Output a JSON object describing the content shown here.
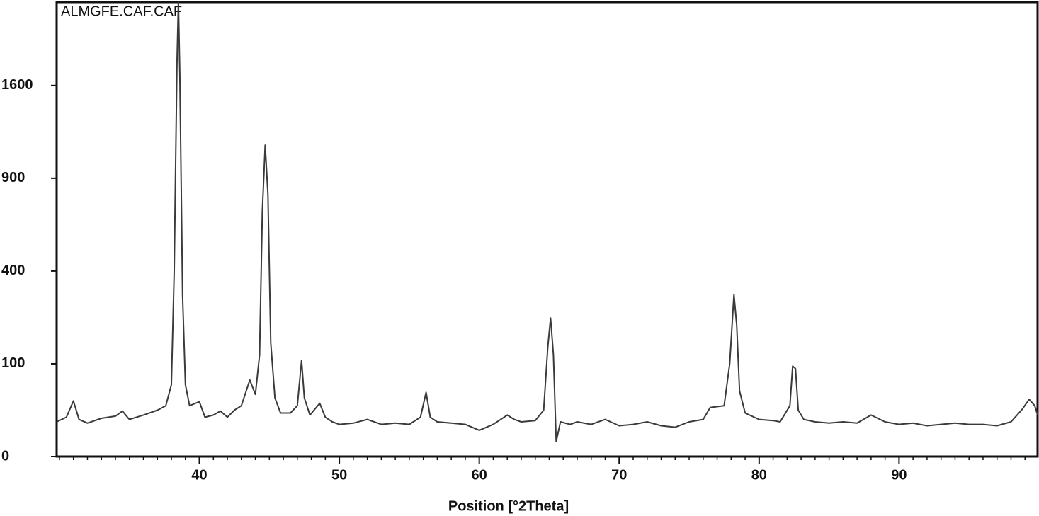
{
  "chart_data": {
    "type": "line",
    "title": "ALMGFE.CAF.CAF",
    "x_label": "Position [°2Theta]",
    "yscale": "sqrt",
    "xlim": [
      29.8,
      99.9
    ],
    "ylim": [
      0,
      2400
    ],
    "xticks": [
      40,
      50,
      60,
      70,
      80,
      90
    ],
    "yticks": [
      0,
      100,
      400,
      900,
      1600
    ],
    "series": [
      {
        "color": "#3a3a3a",
        "x": [
          29.8,
          30.5,
          31.0,
          31.4,
          32,
          33,
          34,
          34.5,
          35,
          36,
          37,
          37.6,
          38.0,
          38.2,
          38.4,
          38.5,
          38.6,
          38.8,
          39.0,
          39.3,
          40.0,
          40.4,
          41,
          41.5,
          42,
          42.5,
          43.0,
          43.6,
          44.0,
          44.3,
          44.5,
          44.7,
          44.9,
          45.1,
          45.4,
          45.8,
          46.5,
          47.0,
          47.3,
          47.5,
          47.9,
          48.6,
          49,
          49.5,
          50,
          51,
          52,
          53,
          54,
          55,
          55.8,
          56.2,
          56.5,
          57,
          58,
          59,
          60,
          61,
          62,
          62.5,
          63,
          64,
          64.6,
          64.9,
          65.1,
          65.3,
          65.5,
          65.8,
          66.5,
          67,
          68,
          69,
          70,
          71,
          72,
          73,
          74,
          75,
          76,
          76.5,
          77.5,
          77.9,
          78.2,
          78.4,
          78.6,
          79,
          80,
          81,
          81.5,
          82.2,
          82.4,
          82.6,
          82.8,
          83.2,
          84,
          85,
          86,
          87,
          88,
          89,
          90,
          91,
          92,
          93,
          94,
          95,
          96,
          97,
          98,
          98.8,
          99.3,
          99.7,
          99.9
        ],
        "values": [
          14,
          18,
          36,
          16,
          13,
          17,
          19,
          24,
          16,
          20,
          25,
          30,
          60,
          400,
          1800,
          2400,
          1700,
          300,
          60,
          30,
          35,
          18,
          20,
          24,
          18,
          25,
          30,
          68,
          45,
          120,
          700,
          1127,
          800,
          150,
          40,
          22,
          22,
          30,
          107,
          40,
          20,
          33,
          18,
          14,
          12,
          13,
          16,
          12,
          13,
          12,
          18,
          48,
          18,
          14,
          13,
          12,
          8,
          12,
          20,
          16,
          14,
          15,
          25,
          140,
          223,
          120,
          2.6,
          14,
          12,
          14,
          12,
          16,
          11,
          12,
          14,
          11,
          10,
          14,
          16,
          28,
          30,
          100,
          305,
          200,
          50,
          22,
          16,
          15,
          14,
          30,
          95,
          90,
          25,
          16,
          14,
          13,
          14,
          13,
          20,
          14,
          12,
          13,
          11,
          12,
          13,
          12,
          12,
          11,
          14,
          26,
          38,
          30,
          20
        ]
      }
    ]
  }
}
